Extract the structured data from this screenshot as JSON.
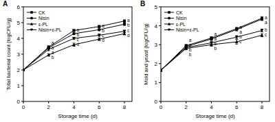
{
  "chart_data": [
    {
      "type": "line",
      "title": "A",
      "x_label": "Storage time (d)",
      "y_label": "Total bacterial count (logCFU/g)",
      "x": [
        0,
        2,
        4,
        6,
        8
      ],
      "xlim": [
        0,
        8.6
      ],
      "xticks": [
        0,
        2,
        4,
        6,
        8
      ],
      "ylim": [
        0,
        6
      ],
      "yticks": [
        0,
        1,
        2,
        3,
        4,
        5,
        6
      ],
      "grid": false,
      "legend": "upper left",
      "series": [
        {
          "name": "CK",
          "color": "#000000",
          "marker": "square",
          "values": [
            2.0,
            3.45,
            4.5,
            4.75,
            5.1
          ],
          "errors": [
            0,
            0.08,
            0.06,
            0.07,
            0.07
          ],
          "letters": [
            null,
            "a",
            "a",
            "a",
            "a"
          ]
        },
        {
          "name": "Nisin",
          "color": "#000000",
          "marker": "circle",
          "values": [
            2.0,
            3.4,
            4.3,
            4.55,
            4.9
          ],
          "errors": [
            0,
            0.07,
            0.06,
            0.06,
            0.08
          ],
          "letters": [
            null,
            "a",
            "b",
            "b",
            "b"
          ]
        },
        {
          "name": "ε-PL",
          "color": "#000000",
          "marker": "triangle",
          "values": [
            2.0,
            2.95,
            3.6,
            3.95,
            4.3
          ],
          "errors": [
            0,
            0.07,
            0.1,
            0.08,
            0.08
          ],
          "letters": [
            null,
            "b",
            "d",
            "d",
            "d"
          ]
        },
        {
          "name": "Nisin+ε-PL",
          "color": "#000000",
          "marker": "triangle-down",
          "values": [
            2.0,
            3.3,
            4.0,
            4.2,
            4.45
          ],
          "errors": [
            0,
            0.08,
            0.07,
            0.07,
            0.07
          ],
          "letters": [
            null,
            "a",
            "c",
            "c",
            "c"
          ]
        }
      ]
    },
    {
      "type": "line",
      "title": "B",
      "x_label": "Storage time (d)",
      "y_label": "Mold and yeast (logCFU/g)",
      "x": [
        0,
        2,
        4,
        6,
        8
      ],
      "xlim": [
        0,
        8.6
      ],
      "xticks": [
        0,
        2,
        4,
        6,
        8
      ],
      "ylim": [
        0,
        5
      ],
      "yticks": [
        0,
        1,
        2,
        3,
        4,
        5
      ],
      "grid": false,
      "legend": "upper left",
      "series": [
        {
          "name": "CK",
          "color": "#000000",
          "marker": "square",
          "values": [
            1.65,
            2.95,
            3.35,
            3.85,
            4.4
          ],
          "errors": [
            0,
            0.06,
            0.07,
            0.06,
            0.08
          ],
          "letters": [
            null,
            "a",
            "a",
            "a",
            "a"
          ]
        },
        {
          "name": "Nisin",
          "color": "#000000",
          "marker": "circle",
          "values": [
            1.65,
            2.9,
            3.3,
            3.8,
            4.35
          ],
          "errors": [
            0,
            0.06,
            0.07,
            0.07,
            0.07
          ],
          "letters": [
            null,
            "a",
            "a",
            "a",
            "a"
          ]
        },
        {
          "name": "ε-PL",
          "color": "#000000",
          "marker": "triangle",
          "values": [
            1.65,
            2.8,
            3.0,
            3.15,
            3.5
          ],
          "errors": [
            0,
            0.07,
            0.08,
            0.12,
            0.08
          ],
          "letters": [
            null,
            "b",
            "b",
            "c",
            "c"
          ]
        },
        {
          "name": "Nisin+ε-PL",
          "color": "#000000",
          "marker": "triangle-down",
          "values": [
            1.65,
            2.85,
            3.1,
            3.4,
            3.75
          ],
          "errors": [
            0,
            0.06,
            0.08,
            0.08,
            0.07
          ],
          "letters": [
            null,
            "b",
            "b",
            "b",
            "b"
          ]
        }
      ]
    }
  ]
}
